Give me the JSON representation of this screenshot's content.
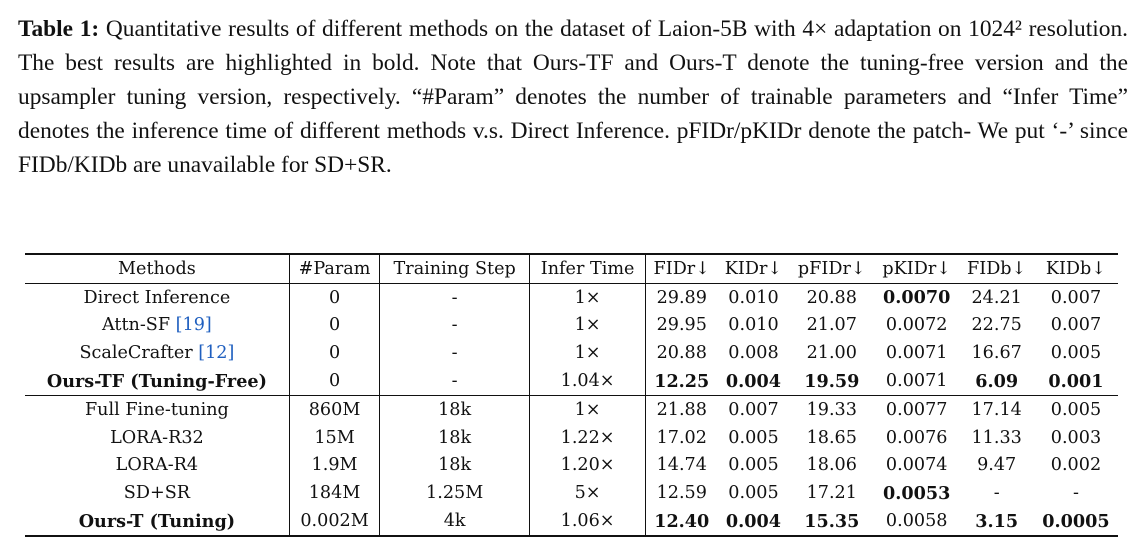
{
  "caption": {
    "label": "Table 1:",
    "lines": [
      "Quantitative results of different methods on the dataset of Laion-5B with 4× adaptation on 1024² resolution. The best results are highlighted in bold. Note that Ours-TF and Ours-T denote the tuning-free version and the upsampler tuning version, respectively. “#Param” denotes the number of trainable parameters and “Infer Time” denotes the inference time of different methods v.s. Direct Inference. pFIDr/pKIDr denote the patch- We put ‘-’ since FIDb/KIDb are unavailable for SD+SR."
    ]
  },
  "table": {
    "headers": [
      "Methods",
      "#Param",
      "Training Step",
      "Infer Time",
      "FIDr↓",
      "KIDr↓",
      "pFIDr↓",
      "pKIDr↓",
      "FIDb↓",
      "KIDb↓"
    ],
    "rows": [
      {
        "method": "Direct Inference",
        "cite": "",
        "cells": [
          "0",
          "-",
          "1×",
          "29.89",
          "0.010",
          "20.88",
          "0.0070",
          "24.21",
          "0.007"
        ],
        "bold": [
          false,
          false,
          false,
          false,
          false,
          false,
          true,
          false,
          false
        ]
      },
      {
        "method": "Attn-SF",
        "cite": "[19]",
        "cells": [
          "0",
          "-",
          "1×",
          "29.95",
          "0.010",
          "21.07",
          "0.0072",
          "22.75",
          "0.007"
        ],
        "bold": [
          false,
          false,
          false,
          false,
          false,
          false,
          false,
          false,
          false
        ]
      },
      {
        "method": "ScaleCrafter",
        "cite": "[12]",
        "cells": [
          "0",
          "-",
          "1×",
          "20.88",
          "0.008",
          "21.00",
          "0.0071",
          "16.67",
          "0.005"
        ],
        "bold": [
          false,
          false,
          false,
          false,
          false,
          false,
          false,
          false,
          false
        ]
      },
      {
        "method": "Ours-TF (Tuning-Free)",
        "cite": "",
        "cells": [
          "0",
          "-",
          "1.04×",
          "12.25",
          "0.004",
          "19.59",
          "0.0071",
          "6.09",
          "0.001"
        ],
        "bold": [
          false,
          false,
          false,
          true,
          true,
          true,
          false,
          true,
          true
        ]
      },
      {
        "method": "Full Fine-tuning",
        "cite": "",
        "cells": [
          "860M",
          "18k",
          "1×",
          "21.88",
          "0.007",
          "19.33",
          "0.0077",
          "17.14",
          "0.005"
        ],
        "bold": [
          false,
          false,
          false,
          false,
          false,
          false,
          false,
          false,
          false
        ]
      },
      {
        "method": "LORA-R32",
        "cite": "",
        "cells": [
          "15M",
          "18k",
          "1.22×",
          "17.02",
          "0.005",
          "18.65",
          "0.0076",
          "11.33",
          "0.003"
        ],
        "bold": [
          false,
          false,
          false,
          false,
          false,
          false,
          false,
          false,
          false
        ]
      },
      {
        "method": "LORA-R4",
        "cite": "",
        "cells": [
          "1.9M",
          "18k",
          "1.20×",
          "14.74",
          "0.005",
          "18.06",
          "0.0074",
          "9.47",
          "0.002"
        ],
        "bold": [
          false,
          false,
          false,
          false,
          false,
          false,
          false,
          false,
          false
        ]
      },
      {
        "method": "SD+SR",
        "cite": "",
        "cells": [
          "184M",
          "1.25M",
          "5×",
          "12.59",
          "0.005",
          "17.21",
          "0.0053",
          "-",
          "-"
        ],
        "bold": [
          false,
          false,
          false,
          false,
          false,
          false,
          true,
          false,
          false
        ]
      },
      {
        "method": "Ours-T (Tuning)",
        "cite": "",
        "cells": [
          "0.002M",
          "4k",
          "1.06×",
          "12.40",
          "0.004",
          "15.35",
          "0.0058",
          "3.15",
          "0.0005"
        ],
        "bold": [
          false,
          false,
          false,
          true,
          true,
          true,
          false,
          true,
          true
        ]
      }
    ]
  }
}
